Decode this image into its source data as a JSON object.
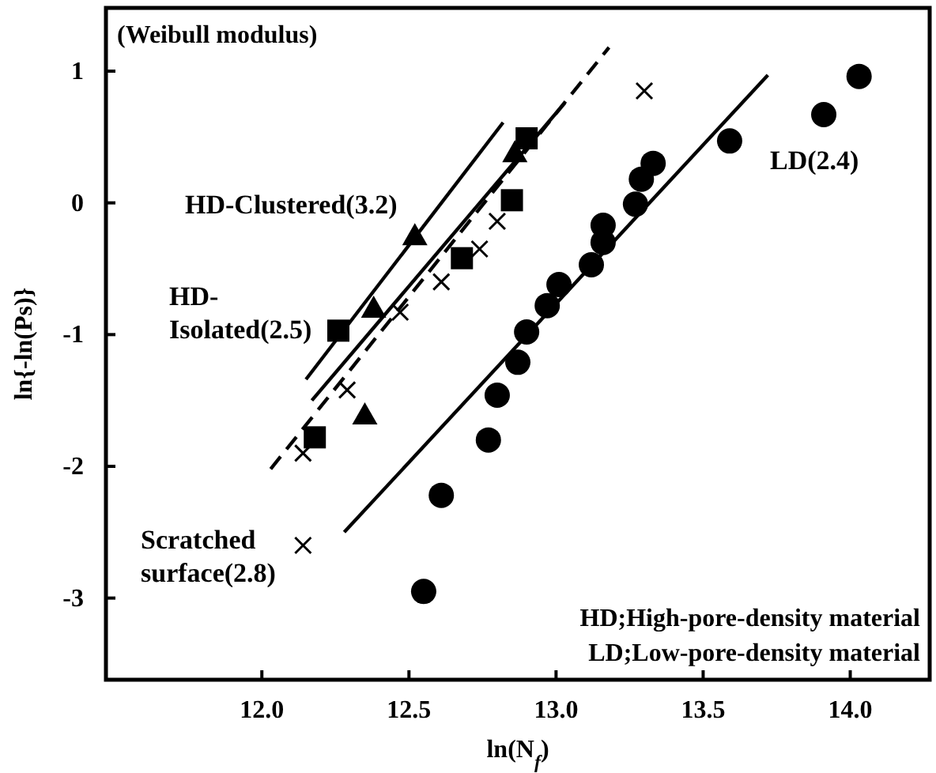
{
  "chart_data": {
    "type": "scatter",
    "xlabel": "ln(N$_{f}$)",
    "ylabel": "ln{-ln(Ps)}",
    "xlim": [
      11.47,
      14.27
    ],
    "ylim": [
      -3.62,
      1.48
    ],
    "xticks": [
      {
        "value": 12,
        "label": "12.0"
      },
      12.5,
      {
        "value": 13,
        "label": "13.0"
      },
      13.5,
      {
        "value": 14,
        "label": "14.0"
      }
    ],
    "yticks": [
      -3,
      -2,
      -1,
      0,
      1
    ],
    "grid": false,
    "series": [
      {
        "color": "#000000",
        "marker": "circle",
        "x": [
          12.55,
          12.61,
          12.77,
          12.8,
          12.87,
          12.9,
          12.97,
          13.01,
          13.12,
          13.16,
          13.16,
          13.27,
          13.29,
          13.33,
          13.59,
          13.91,
          14.03
        ],
        "values": [
          -2.95,
          -2.22,
          -1.8,
          -1.46,
          -1.21,
          -0.98,
          -0.78,
          -0.62,
          -0.47,
          -0.3,
          -0.17,
          -0.01,
          0.18,
          0.3,
          0.47,
          0.67,
          0.96
        ]
      },
      {
        "color": "#000000",
        "marker": "triangle",
        "x": [
          12.35,
          12.38,
          12.52,
          12.86
        ],
        "values": [
          -1.61,
          -0.8,
          -0.25,
          0.38
        ]
      },
      {
        "color": "#000000",
        "marker": "square",
        "x": [
          12.18,
          12.26,
          12.68,
          12.85,
          12.9
        ],
        "values": [
          -1.78,
          -0.97,
          -0.42,
          0.02,
          0.49
        ]
      },
      {
        "color": "#000000",
        "marker": "cross",
        "x": [
          12.14,
          12.14,
          12.29,
          12.47,
          12.61,
          12.74,
          12.8,
          13.3
        ],
        "values": [
          -2.6,
          -1.9,
          -1.42,
          -0.83,
          -0.6,
          -0.35,
          -0.14,
          0.85
        ]
      },
      {
        "type": "line",
        "color": "#000000",
        "line_style": "solid",
        "x": [
          12.15,
          12.82
        ],
        "values": [
          -1.34,
          0.61
        ]
      },
      {
        "type": "line",
        "color": "#000000",
        "line_style": "solid",
        "x": [
          12.17,
          13.03
        ],
        "values": [
          -1.5,
          0.76
        ]
      },
      {
        "type": "line",
        "color": "#000000",
        "line_style": "dashed",
        "x": [
          12.03,
          13.18
        ],
        "values": [
          -2.02,
          1.18
        ]
      },
      {
        "type": "line",
        "color": "#000000",
        "line_style": "solid",
        "x": [
          12.28,
          13.72
        ],
        "values": [
          -2.5,
          0.97
        ]
      }
    ],
    "annotations": [
      "(Weibull modulus)",
      "HD;High-pore-density material\nLD;Low-pore-density material",
      "HD-Clustered(3.2)",
      "HD-\nIsolated(2.5)",
      "Scratched\nsurface(2.8)",
      "LD(2.4)"
    ]
  }
}
